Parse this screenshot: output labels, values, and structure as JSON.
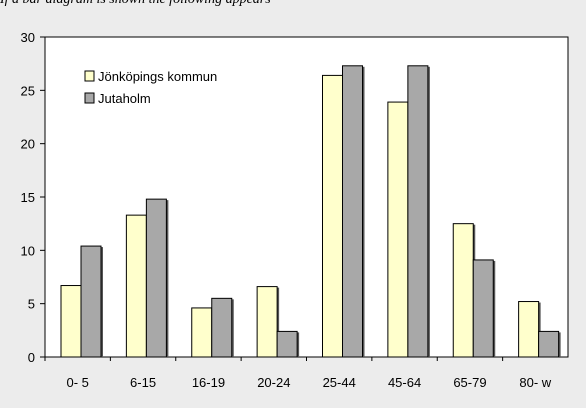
{
  "caption": "If a bar diagram is shown the following appears",
  "chart_data": {
    "type": "bar",
    "categories": [
      "0- 5",
      "6-15",
      "16-19",
      "20-24",
      "25-44",
      "45-64",
      "65-79",
      "80- w"
    ],
    "series": [
      {
        "name": "Jönköpings kommun",
        "values": [
          6.7,
          13.3,
          4.6,
          6.6,
          26.4,
          23.9,
          12.5,
          5.2
        ],
        "color": "#ffffcc"
      },
      {
        "name": "Jutaholm",
        "values": [
          10.4,
          14.8,
          5.5,
          2.4,
          27.3,
          27.3,
          9.1,
          2.4
        ],
        "color": "#a8a8a8"
      }
    ],
    "ylim": [
      0,
      30
    ],
    "yticks": [
      0,
      5,
      10,
      15,
      20,
      25,
      30
    ],
    "grid": false,
    "legend_position": "top-left"
  }
}
